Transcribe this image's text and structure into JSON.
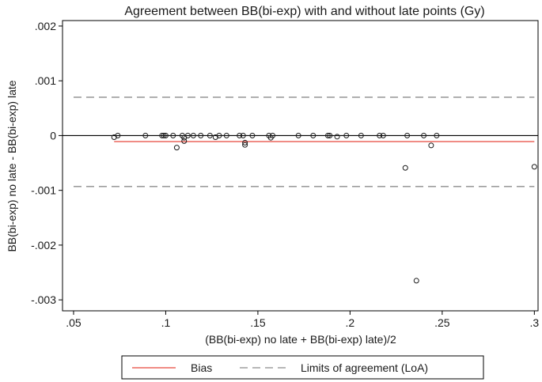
{
  "chart_data": {
    "type": "scatter",
    "title": "Agreement between BB(bi-exp) with and without late points (Gy)",
    "xlabel": "(BB(bi-exp) no late + BB(bi-exp) late)/2",
    "ylabel": "BB(bi-exp) no late - BB(bi-exp) late",
    "xlim": [
      0.044,
      0.302
    ],
    "ylim": [
      -0.0032,
      0.0021
    ],
    "x_ticks": [
      0.05,
      0.1,
      0.15,
      0.2,
      0.25,
      0.3
    ],
    "x_tick_labels": [
      ".05",
      ".1",
      ".15",
      ".2",
      ".25",
      ".3"
    ],
    "y_ticks": [
      0.002,
      0.001,
      0,
      -0.001,
      -0.002,
      -0.003
    ],
    "y_tick_labels": [
      ".002",
      ".001",
      "0",
      "-.001",
      "-.002",
      "-.003"
    ],
    "grid": false,
    "zero_line": 0,
    "bias": -0.00011,
    "loa_upper": 0.0007,
    "loa_lower": -0.00093,
    "points": [
      {
        "x": 0.072,
        "y": -3e-05
      },
      {
        "x": 0.074,
        "y": 0.0
      },
      {
        "x": 0.089,
        "y": 0.0
      },
      {
        "x": 0.098,
        "y": 0.0
      },
      {
        "x": 0.099,
        "y": 0.0
      },
      {
        "x": 0.1,
        "y": 0.0
      },
      {
        "x": 0.104,
        "y": 0.0
      },
      {
        "x": 0.106,
        "y": -0.00022
      },
      {
        "x": 0.109,
        "y": 0.0
      },
      {
        "x": 0.11,
        "y": -4e-05
      },
      {
        "x": 0.11,
        "y": -0.0001
      },
      {
        "x": 0.112,
        "y": 0.0
      },
      {
        "x": 0.115,
        "y": 0.0
      },
      {
        "x": 0.119,
        "y": 0.0
      },
      {
        "x": 0.124,
        "y": 0.0
      },
      {
        "x": 0.127,
        "y": -3e-05
      },
      {
        "x": 0.129,
        "y": 0.0
      },
      {
        "x": 0.133,
        "y": 0.0
      },
      {
        "x": 0.14,
        "y": 0.0
      },
      {
        "x": 0.142,
        "y": 0.0
      },
      {
        "x": 0.143,
        "y": -0.00013
      },
      {
        "x": 0.143,
        "y": -0.00017
      },
      {
        "x": 0.147,
        "y": 0.0
      },
      {
        "x": 0.156,
        "y": 0.0
      },
      {
        "x": 0.157,
        "y": -4e-05
      },
      {
        "x": 0.158,
        "y": 0.0
      },
      {
        "x": 0.172,
        "y": 0.0
      },
      {
        "x": 0.18,
        "y": 0.0
      },
      {
        "x": 0.188,
        "y": 0.0
      },
      {
        "x": 0.189,
        "y": 0.0
      },
      {
        "x": 0.193,
        "y": -2e-05
      },
      {
        "x": 0.198,
        "y": 0.0
      },
      {
        "x": 0.206,
        "y": 0.0
      },
      {
        "x": 0.216,
        "y": 0.0
      },
      {
        "x": 0.218,
        "y": 0.0
      },
      {
        "x": 0.231,
        "y": 0.0
      },
      {
        "x": 0.23,
        "y": -0.00059
      },
      {
        "x": 0.236,
        "y": -0.00265
      },
      {
        "x": 0.24,
        "y": 0.0
      },
      {
        "x": 0.244,
        "y": -0.00018
      },
      {
        "x": 0.247,
        "y": 0.0
      },
      {
        "x": 0.3,
        "y": -0.00057
      }
    ],
    "legend": [
      {
        "label": "Bias",
        "style": "solid",
        "color": "#e8473c"
      },
      {
        "label": "Limits of agreement (LoA)",
        "style": "dashed",
        "color": "#8c8c8c"
      }
    ],
    "legend_position": "bottom",
    "colors": {
      "bias": "#e8473c",
      "loa": "#8c8c8c",
      "zero": "#000000",
      "marker": "#1a1a1a",
      "frame": "#000000"
    }
  }
}
